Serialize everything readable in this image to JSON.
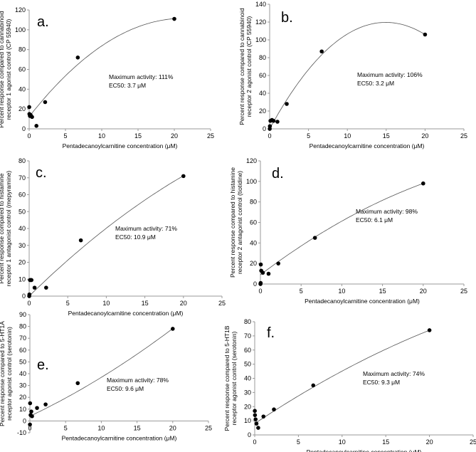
{
  "chart_data": [
    {
      "panel": "a.",
      "type": "scatter",
      "xlabel": "Pentadecanoylcarnitine concentration (μM)",
      "ylabel_lines": [
        "Percent response compared to cannabinoid",
        "receptor 1 agonist control (CP 55940)"
      ],
      "xlim": [
        0,
        25
      ],
      "ylim": [
        0,
        120
      ],
      "xticks": [
        0,
        5,
        10,
        15,
        20,
        25
      ],
      "yticks": [
        0,
        20,
        40,
        60,
        80,
        100,
        120
      ],
      "points": [
        [
          0.01,
          22
        ],
        [
          0.03,
          15
        ],
        [
          0.1,
          13
        ],
        [
          0.2,
          14
        ],
        [
          0.4,
          12
        ],
        [
          1,
          3
        ],
        [
          2.2,
          27
        ],
        [
          6.7,
          72
        ],
        [
          20,
          111
        ]
      ],
      "fit": {
        "type": "quadratic",
        "coef": [
          12.3,
          9.34,
          -0.2197
        ],
        "xrange": [
          0,
          20
        ]
      },
      "annotation": [
        "Maximum activity: 111%",
        "EC50: 3.7 μM"
      ],
      "grid": false
    },
    {
      "panel": "b.",
      "type": "scatter",
      "xlabel": "Pentadecanoylcarnitine concentration (μM)",
      "ylabel_lines": [
        "Percent response compared to cannabinoid",
        "receptor 2 agonist control (CP 55940)"
      ],
      "xlim": [
        0,
        25
      ],
      "ylim": [
        0,
        140
      ],
      "xticks": [
        0,
        5,
        10,
        15,
        20,
        25
      ],
      "yticks": [
        0,
        20,
        40,
        60,
        80,
        100,
        120,
        140
      ],
      "points": [
        [
          0.01,
          0
        ],
        [
          0.03,
          3
        ],
        [
          0.1,
          9
        ],
        [
          0.3,
          10
        ],
        [
          0.5,
          9
        ],
        [
          1,
          8
        ],
        [
          2.2,
          28
        ],
        [
          6.7,
          87
        ],
        [
          20,
          106
        ]
      ],
      "fit": {
        "type": "quadratic",
        "coef": [
          0,
          16.01,
          -0.5356
        ],
        "xrange": [
          0,
          20
        ]
      },
      "annotation": [
        "Maximum activity: 106%",
        "EC50: 3.2 μM"
      ],
      "grid": false
    },
    {
      "panel": "c.",
      "type": "scatter",
      "xlabel": "Pentadecanoylcarnitine concentration (μM)",
      "ylabel_lines": [
        "Percent response compared to histamine",
        "receptor 1 antagonist control (mepyramine)"
      ],
      "xlim": [
        0,
        25
      ],
      "ylim": [
        0,
        80
      ],
      "xticks": [
        0,
        5,
        10,
        15,
        20,
        25
      ],
      "yticks": [
        0,
        10,
        20,
        30,
        40,
        50,
        60,
        70,
        80
      ],
      "points": [
        [
          0.01,
          0
        ],
        [
          0.03,
          1
        ],
        [
          0.1,
          9.5
        ],
        [
          0.2,
          9.5
        ],
        [
          0.3,
          9.5
        ],
        [
          0.7,
          5
        ],
        [
          2.2,
          5
        ],
        [
          6.7,
          33
        ],
        [
          20,
          71
        ]
      ],
      "fit": {
        "type": "quadratic",
        "coef": [
          0,
          4.47,
          -0.0455
        ],
        "xrange": [
          0,
          20
        ]
      },
      "annotation": [
        "Maximum activity: 71%",
        "EC50: 10.9 μM"
      ],
      "grid": false
    },
    {
      "panel": "d.",
      "type": "scatter",
      "xlabel": "Pentadecanoylcarnitine concentration (μM)",
      "ylabel_lines": [
        "Percent response compared to histamine",
        "receptor 2 antagonist control (tiotidine)"
      ],
      "xlim": [
        0,
        25
      ],
      "ylim": [
        0,
        120
      ],
      "xticks": [
        0,
        5,
        10,
        15,
        20,
        25
      ],
      "yticks": [
        0,
        20,
        40,
        60,
        80,
        100,
        120
      ],
      "points": [
        [
          0.01,
          0
        ],
        [
          0.03,
          1
        ],
        [
          0.05,
          19
        ],
        [
          0.1,
          13
        ],
        [
          0.3,
          11
        ],
        [
          1,
          10
        ],
        [
          2.2,
          20
        ],
        [
          6.7,
          45
        ],
        [
          20,
          98
        ]
      ],
      "fit": {
        "type": "quadratic",
        "coef": [
          9,
          6.0,
          -0.0775
        ],
        "xrange": [
          0,
          20
        ]
      },
      "annotation": [
        "Maximum activity: 98%",
        "EC50: 6.1 μM"
      ],
      "grid": false
    },
    {
      "panel": "e.",
      "type": "scatter",
      "xlabel": "Pentadecanoylcarnitine concentration (μM)",
      "ylabel_lines": [
        "Percent response compared to 5-HT1A",
        "receptor agonist control (serotonin)"
      ],
      "xlim": [
        0,
        25
      ],
      "ylim": [
        -10,
        90
      ],
      "xticks": [
        0,
        5,
        10,
        15,
        20,
        25
      ],
      "yticks": [
        -10,
        0,
        10,
        20,
        30,
        40,
        50,
        60,
        70,
        80,
        90
      ],
      "points": [
        [
          0.01,
          -3
        ],
        [
          0.03,
          15
        ],
        [
          0.1,
          5
        ],
        [
          0.2,
          8
        ],
        [
          0.3,
          4
        ],
        [
          1,
          11
        ],
        [
          2.2,
          14
        ],
        [
          6.7,
          32
        ],
        [
          20,
          78
        ]
      ],
      "fit": {
        "type": "quadratic",
        "coef": [
          4,
          2.87,
          0.042
        ],
        "xrange": [
          0,
          20
        ]
      },
      "annotation": [
        "Maximum activity: 78%",
        "EC50: 9.6 μM"
      ],
      "grid": false
    },
    {
      "panel": "f.",
      "type": "scatter",
      "xlabel": "Pentadecanoylcarnitine concentration (μM)",
      "ylabel_lines": [
        "Percent response compared to 5-HT1B",
        "receptor agonist control (serotonin)"
      ],
      "xlim": [
        0,
        25
      ],
      "ylim": [
        0,
        80
      ],
      "xticks": [
        0,
        5,
        10,
        15,
        20,
        25
      ],
      "yticks": [
        0,
        10,
        20,
        30,
        40,
        50,
        60,
        70,
        80
      ],
      "points": [
        [
          0.01,
          17
        ],
        [
          0.03,
          14
        ],
        [
          0.1,
          11
        ],
        [
          0.2,
          8
        ],
        [
          0.4,
          5
        ],
        [
          1,
          13
        ],
        [
          2.2,
          18
        ],
        [
          6.7,
          35
        ],
        [
          20,
          74
        ]
      ],
      "fit": {
        "type": "quadratic",
        "coef": [
          8,
          4.12,
          -0.041
        ],
        "xrange": [
          0,
          20
        ]
      },
      "annotation": [
        "Maximum activity: 74%",
        "EC50: 9.3 μM"
      ],
      "grid": false
    }
  ]
}
